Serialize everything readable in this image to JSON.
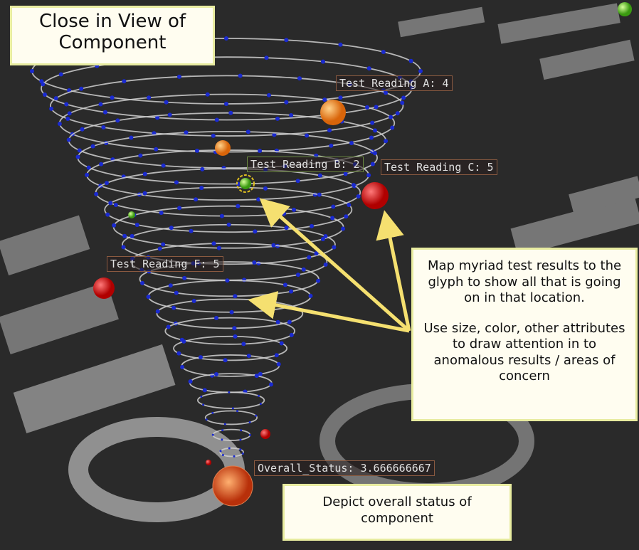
{
  "header": {
    "title": "Close in View of Component"
  },
  "labels": [
    "Test Reading A: 4",
    "Test Reading B: 2",
    "Test Reading C: 5",
    "Test Reading F: 5",
    "Overall_Status: 3.666666667"
  ],
  "callouts": [
    {
      "paragraphs": [
        "Map myriad test results to the glyph to show all that is going on in that location.",
        "Use size, color, other attributes to draw attention in to anomalous results / areas of concern"
      ]
    },
    {
      "paragraphs": [
        "Depict overall status of component"
      ]
    }
  ]
}
